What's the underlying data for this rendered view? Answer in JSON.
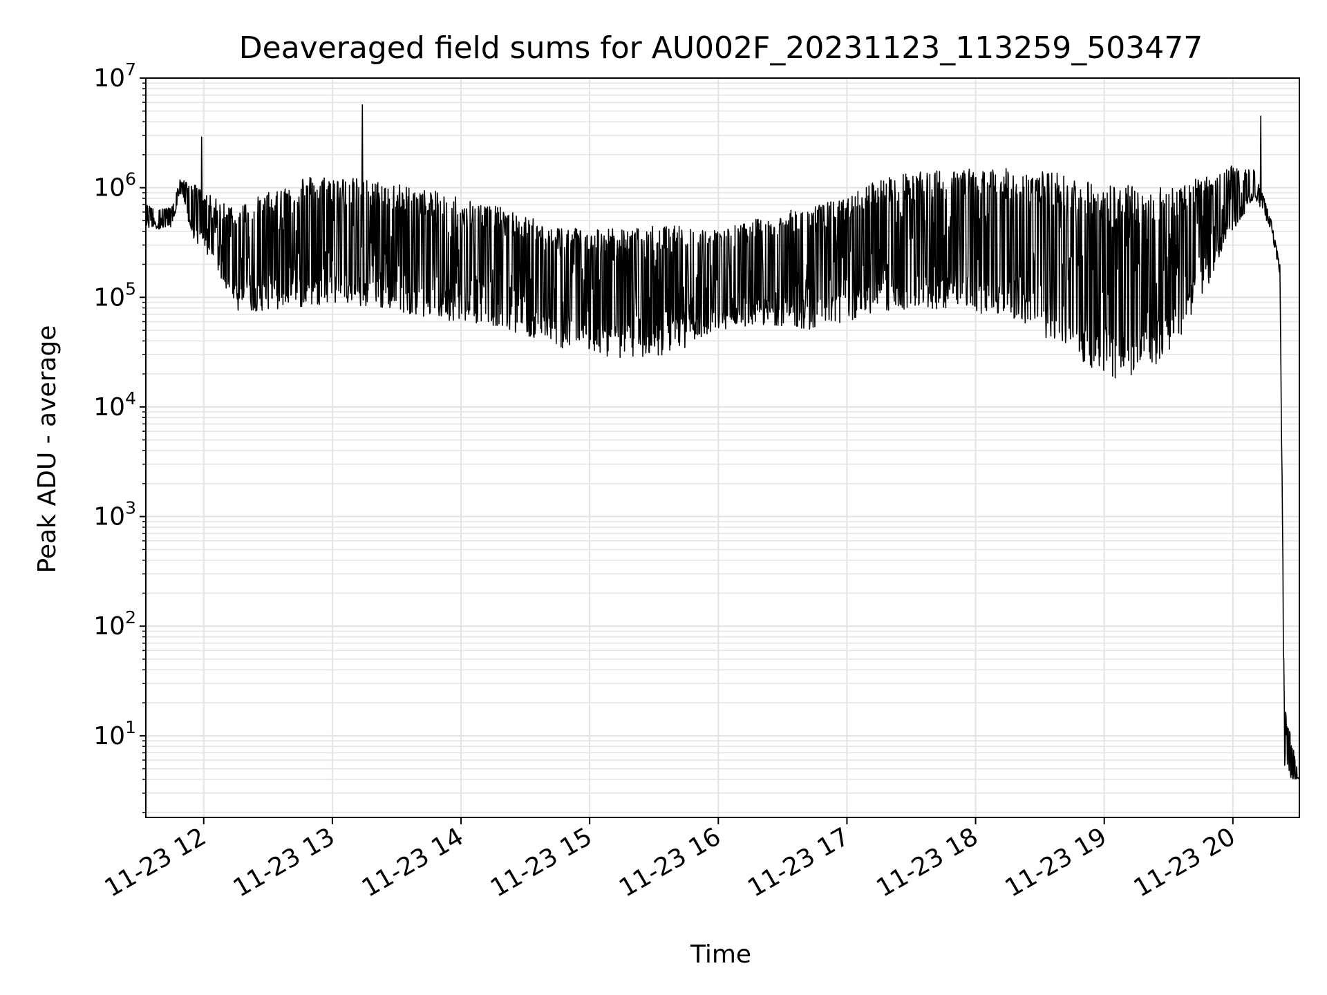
{
  "chart_data": {
    "type": "line",
    "title": "Deaveraged field sums for AU002F_20231123_113259_503477",
    "xlabel": "Time",
    "ylabel": "Peak ADU - average",
    "yscale": "log",
    "ylim": [
      1.8,
      10000000
    ],
    "xlim": [
      "2023-11-23T11:33",
      "2023-11-23T20:31"
    ],
    "grid": true,
    "line_color": "#000000",
    "x_ticks": [
      {
        "t": "2023-11-23T12:00",
        "label": "11-23 12"
      },
      {
        "t": "2023-11-23T13:00",
        "label": "11-23 13"
      },
      {
        "t": "2023-11-23T14:00",
        "label": "11-23 14"
      },
      {
        "t": "2023-11-23T15:00",
        "label": "11-23 15"
      },
      {
        "t": "2023-11-23T16:00",
        "label": "11-23 16"
      },
      {
        "t": "2023-11-23T17:00",
        "label": "11-23 17"
      },
      {
        "t": "2023-11-23T18:00",
        "label": "11-23 18"
      },
      {
        "t": "2023-11-23T19:00",
        "label": "11-23 19"
      },
      {
        "t": "2023-11-23T20:00",
        "label": "11-23 20"
      }
    ],
    "y_ticks": [
      {
        "value": 10,
        "base": "10",
        "exp": "1"
      },
      {
        "value": 100,
        "base": "10",
        "exp": "2"
      },
      {
        "value": 1000,
        "base": "10",
        "exp": "3"
      },
      {
        "value": 10000,
        "base": "10",
        "exp": "4"
      },
      {
        "value": 100000,
        "base": "10",
        "exp": "5"
      },
      {
        "value": 1000000,
        "base": "10",
        "exp": "6"
      },
      {
        "value": 10000000,
        "base": "10",
        "exp": "7"
      }
    ],
    "series": [
      {
        "envelope": {
          "x": [
            "2023-11-23T11:33",
            "2023-11-23T11:45",
            "2023-11-23T11:49",
            "2023-11-23T11:55",
            "2023-11-23T12:05",
            "2023-11-23T12:15",
            "2023-11-23T12:30",
            "2023-11-23T12:45",
            "2023-11-23T13:00",
            "2023-11-23T13:15",
            "2023-11-23T13:30",
            "2023-11-23T13:45",
            "2023-11-23T14:00",
            "2023-11-23T14:15",
            "2023-11-23T14:30",
            "2023-11-23T14:45",
            "2023-11-23T15:00",
            "2023-11-23T15:15",
            "2023-11-23T15:30",
            "2023-11-23T15:45",
            "2023-11-23T16:00",
            "2023-11-23T16:15",
            "2023-11-23T16:30",
            "2023-11-23T16:45",
            "2023-11-23T17:00",
            "2023-11-23T17:10",
            "2023-11-23T17:20",
            "2023-11-23T17:35",
            "2023-11-23T17:50",
            "2023-11-23T18:05",
            "2023-11-23T18:20",
            "2023-11-23T18:35",
            "2023-11-23T18:50",
            "2023-11-23T19:05",
            "2023-11-23T19:20",
            "2023-11-23T19:35",
            "2023-11-23T19:50",
            "2023-11-23T20:00",
            "2023-11-23T20:10",
            "2023-11-23T20:18",
            "2023-11-23T20:22",
            "2023-11-23T20:24",
            "2023-11-23T20:31"
          ],
          "high": [
            700000,
            650000,
            1200000,
            1100000,
            800000,
            700000,
            900000,
            1300000,
            1300000,
            1200000,
            1100000,
            950000,
            850000,
            700000,
            550000,
            450000,
            450000,
            420000,
            450000,
            450000,
            420000,
            500000,
            600000,
            700000,
            800000,
            1100000,
            1300000,
            1400000,
            1500000,
            1500000,
            1500000,
            1400000,
            1200000,
            1100000,
            1000000,
            1100000,
            1300000,
            1600000,
            1500000,
            500000,
            200000,
            20,
            4
          ],
          "low": [
            420000,
            420000,
            900000,
            340000,
            200000,
            75000,
            75000,
            80000,
            90000,
            80000,
            75000,
            65000,
            60000,
            55000,
            45000,
            35000,
            30000,
            28000,
            28000,
            35000,
            50000,
            55000,
            55000,
            50000,
            60000,
            70000,
            75000,
            75000,
            80000,
            70000,
            60000,
            40000,
            25000,
            18000,
            20000,
            40000,
            150000,
            400000,
            800000,
            400000,
            150000,
            4,
            4
          ]
        },
        "spikes": [
          {
            "t": "2023-11-23T11:59",
            "value": 2900000
          },
          {
            "t": "2023-11-23T13:14",
            "value": 5700000
          },
          {
            "t": "2023-11-23T20:13",
            "value": 4500000
          }
        ],
        "floor_value": 4
      }
    ]
  }
}
